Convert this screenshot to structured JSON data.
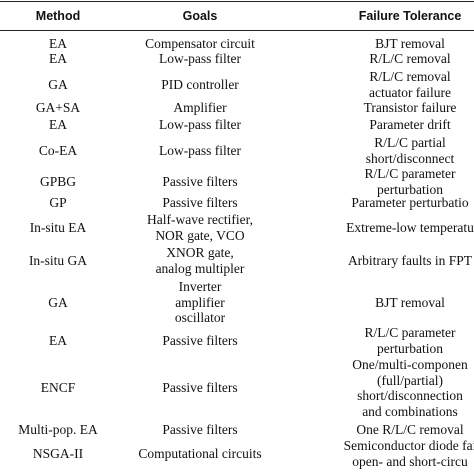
{
  "table": {
    "header": [
      "Method",
      "Goals",
      "Failure Tolerance"
    ],
    "rows": [
      {
        "method": "EA",
        "goals": [
          "Compensator circuit"
        ],
        "tolerance": [
          "BJT removal"
        ]
      },
      {
        "method": "EA",
        "goals": [
          "Low-pass filter"
        ],
        "tolerance": [
          "R/L/C removal"
        ]
      },
      {
        "method": "GA",
        "goals": [
          "PID controller"
        ],
        "tolerance": [
          "R/L/C removal",
          "actuator failure"
        ]
      },
      {
        "method": "GA+SA",
        "goals": [
          "Amplifier"
        ],
        "tolerance": [
          "Transistor failure"
        ]
      },
      {
        "method": "EA",
        "goals": [
          "Low-pass filter"
        ],
        "tolerance": [
          "Parameter drift"
        ]
      },
      {
        "method": "Co-EA",
        "goals": [
          "Low-pass filter"
        ],
        "tolerance": [
          "R/L/C partial",
          "short/disconnect"
        ]
      },
      {
        "method": "GPBG",
        "goals": [
          "Passive filters"
        ],
        "tolerance": [
          "R/L/C parameter",
          "perturbation"
        ]
      },
      {
        "method": "GP",
        "goals": [
          "Passive filters"
        ],
        "tolerance": [
          "Parameter perturbatio"
        ]
      },
      {
        "method": "In-situ EA",
        "goals": [
          "Half-wave rectifier,",
          "NOR gate, VCO"
        ],
        "tolerance": [
          "Extreme-low temperatu"
        ]
      },
      {
        "method": "In-situ GA",
        "goals": [
          "XNOR gate,",
          "analog multipler"
        ],
        "tolerance": [
          "Arbitrary faults in FPT"
        ]
      },
      {
        "method": "GA",
        "goals": [
          "Inverter",
          "amplifier",
          "oscillator"
        ],
        "tolerance": [
          "BJT removal"
        ]
      },
      {
        "method": "EA",
        "goals": [
          "Passive filters"
        ],
        "tolerance": [
          "R/L/C parameter",
          "perturbation"
        ]
      },
      {
        "method": "ENCF",
        "goals": [
          "Passive filters"
        ],
        "tolerance": [
          "One/multi-componen",
          "(full/partial)",
          "short/disconnection",
          "and combinations"
        ]
      },
      {
        "method": "Multi-pop. EA",
        "goals": [
          "Passive filters"
        ],
        "tolerance": [
          "One R/L/C removal"
        ]
      },
      {
        "method": "NSGA-II",
        "goals": [
          "Computational circuits"
        ],
        "tolerance": [
          "Semiconductor diode fai",
          "open- and short-circu"
        ]
      }
    ]
  }
}
